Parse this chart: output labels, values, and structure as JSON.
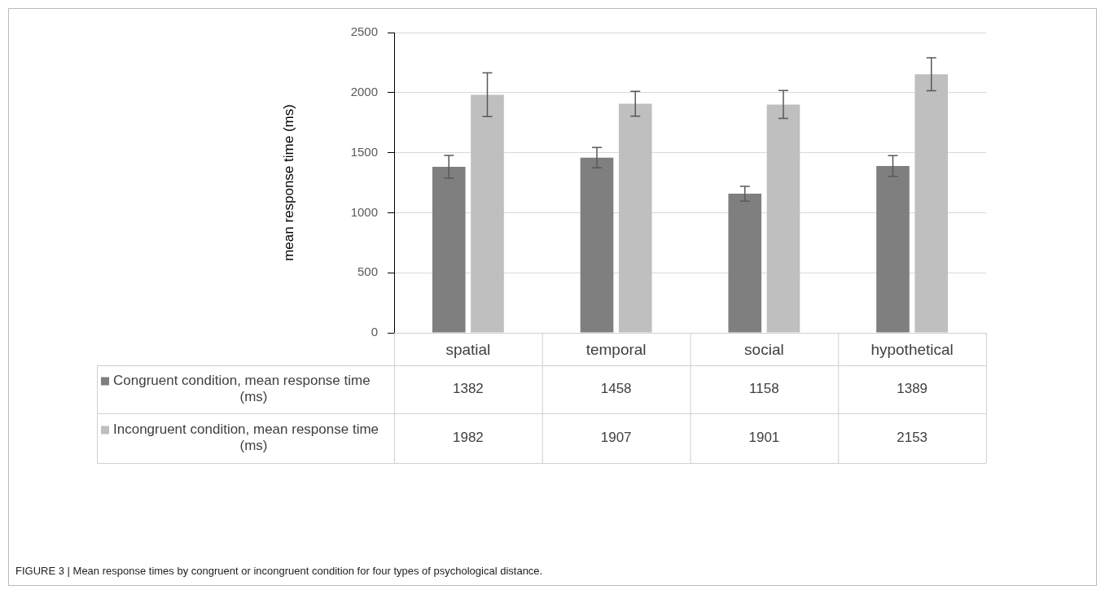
{
  "chart_data": {
    "type": "bar",
    "categories": [
      "spatial",
      "temporal",
      "social",
      "hypothetical"
    ],
    "series": [
      {
        "name": "Congruent condition, mean response time (ms)",
        "color": "#7f7f7f",
        "values": [
          1382,
          1458,
          1158,
          1389
        ],
        "errors": [
          95,
          85,
          62,
          87
        ]
      },
      {
        "name": "Incongruent condition, mean response time (ms)",
        "color": "#bfbfbf",
        "values": [
          1982,
          1907,
          1901,
          2153
        ],
        "errors": [
          182,
          103,
          116,
          137
        ]
      }
    ],
    "ylabel": "mean response time (ms)",
    "ylim": [
      0,
      2500
    ],
    "yticks": [
      0,
      500,
      1000,
      1500,
      2000,
      2500
    ],
    "grid": "y",
    "legend": "bottom",
    "data_labels": true,
    "annotations": [
      "FIGURE 3 | Mean response times by congruent or incongruent condition for four types of psychological distance."
    ]
  }
}
